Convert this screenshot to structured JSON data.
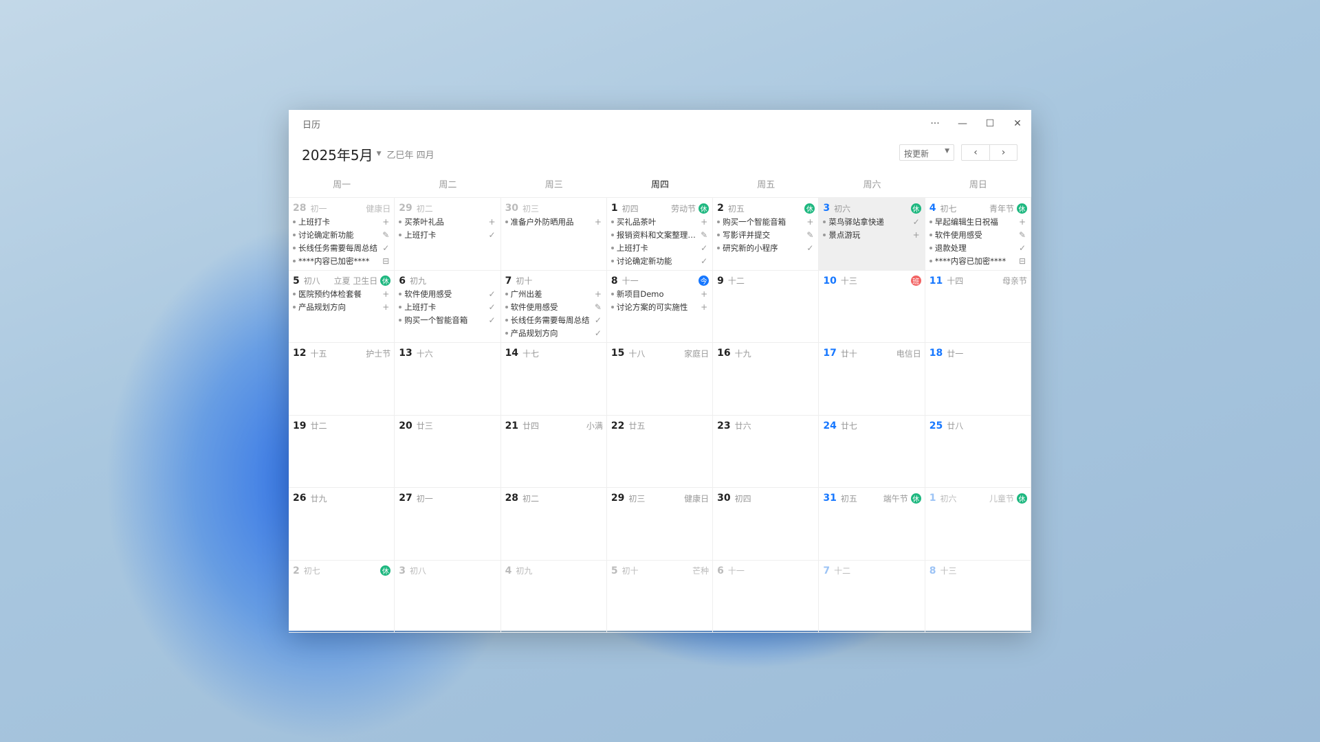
{
  "app": {
    "title": "日历"
  },
  "window_controls": {
    "more": "···",
    "minimize": "—",
    "maximize": "☐",
    "close": "✕"
  },
  "header": {
    "month": "2025年5月",
    "lunar_year": "乙巳年 四月",
    "sort_label": "按更新",
    "prev": "‹",
    "next": "›"
  },
  "weekdays": [
    "周一",
    "周二",
    "周三",
    "周四",
    "周五",
    "周六",
    "周日"
  ],
  "current_weekday": 3,
  "badge_colors": {
    "休": "#1db77f",
    "今": "#1677ff",
    "班": "#f26363"
  },
  "weeks": [
    [
      {
        "day": "28",
        "lunar": "初一",
        "festival": "健康日",
        "other": true,
        "items": [
          {
            "text": "上班打卡",
            "icon": "plus"
          },
          {
            "text": "讨论确定新功能",
            "icon": "edit"
          },
          {
            "text": "长线任务需要每周总结",
            "icon": "check"
          },
          {
            "text": "****内容已加密****",
            "icon": "lock"
          }
        ]
      },
      {
        "day": "29",
        "lunar": "初二",
        "other": true,
        "items": [
          {
            "text": "买茶叶礼品",
            "icon": "plus"
          },
          {
            "text": "上班打卡",
            "icon": "check"
          }
        ]
      },
      {
        "day": "30",
        "lunar": "初三",
        "other": true,
        "items": [
          {
            "text": "准备户外防晒用品",
            "icon": "plus"
          }
        ]
      },
      {
        "day": "1",
        "lunar": "初四",
        "festival": "劳动节",
        "badge": "休",
        "items": [
          {
            "text": "买礼品茶叶",
            "icon": "plus"
          },
          {
            "text": "报销资料和文案整理整理",
            "icon": "edit"
          },
          {
            "text": "上班打卡",
            "icon": "check"
          },
          {
            "text": "讨论确定新功能",
            "icon": "check"
          }
        ]
      },
      {
        "day": "2",
        "lunar": "初五",
        "badge": "休",
        "items": [
          {
            "text": "购买一个智能音箱",
            "icon": "plus"
          },
          {
            "text": "写影评并提交",
            "icon": "edit"
          },
          {
            "text": "研究新的小程序",
            "icon": "check"
          }
        ]
      },
      {
        "day": "3",
        "lunar": "初六",
        "badge": "休",
        "weekend": true,
        "selected": true,
        "items": [
          {
            "text": "菜鸟驿站拿快递",
            "icon": "check"
          },
          {
            "text": "景点游玩",
            "icon": "plus"
          }
        ]
      },
      {
        "day": "4",
        "lunar": "初七",
        "festival": "青年节",
        "badge": "休",
        "weekend": true,
        "items": [
          {
            "text": "早起编辑生日祝福",
            "icon": "plus"
          },
          {
            "text": "软件使用感受",
            "icon": "edit"
          },
          {
            "text": "退款处理",
            "icon": "check"
          },
          {
            "text": "****内容已加密****",
            "icon": "lock"
          }
        ]
      }
    ],
    [
      {
        "day": "5",
        "lunar": "初八",
        "festival": "立夏 卫生日",
        "badge": "休",
        "items": [
          {
            "text": "医院预约体检套餐",
            "icon": "plus"
          },
          {
            "text": "产品规划方向",
            "icon": "plus"
          }
        ]
      },
      {
        "day": "6",
        "lunar": "初九",
        "items": [
          {
            "text": "软件使用感受",
            "icon": "check"
          },
          {
            "text": "上班打卡",
            "icon": "check"
          },
          {
            "text": "购买一个智能音箱",
            "icon": "check"
          }
        ]
      },
      {
        "day": "7",
        "lunar": "初十",
        "items": [
          {
            "text": "广州出差",
            "icon": "plus"
          },
          {
            "text": "软件使用感受",
            "icon": "edit"
          },
          {
            "text": "长线任务需要每周总结",
            "icon": "check"
          },
          {
            "text": "产品规划方向",
            "icon": "check"
          }
        ]
      },
      {
        "day": "8",
        "lunar": "十一",
        "badge": "今",
        "today": true,
        "items": [
          {
            "text": "新项目Demo",
            "icon": "plus"
          },
          {
            "text": "讨论方案的可实施性",
            "icon": "plus"
          }
        ]
      },
      {
        "day": "9",
        "lunar": "十二",
        "items": []
      },
      {
        "day": "10",
        "lunar": "十三",
        "badge": "班",
        "weekend": true,
        "items": []
      },
      {
        "day": "11",
        "lunar": "十四",
        "festival": "母亲节",
        "weekend": true,
        "items": []
      }
    ],
    [
      {
        "day": "12",
        "lunar": "十五",
        "festival": "护士节",
        "items": []
      },
      {
        "day": "13",
        "lunar": "十六",
        "items": []
      },
      {
        "day": "14",
        "lunar": "十七",
        "items": []
      },
      {
        "day": "15",
        "lunar": "十八",
        "festival": "家庭日",
        "items": []
      },
      {
        "day": "16",
        "lunar": "十九",
        "items": []
      },
      {
        "day": "17",
        "lunar": "廿十",
        "festival": "电信日",
        "weekend": true,
        "items": []
      },
      {
        "day": "18",
        "lunar": "廿一",
        "weekend": true,
        "items": []
      }
    ],
    [
      {
        "day": "19",
        "lunar": "廿二",
        "items": []
      },
      {
        "day": "20",
        "lunar": "廿三",
        "items": []
      },
      {
        "day": "21",
        "lunar": "廿四",
        "festival": "小满",
        "items": []
      },
      {
        "day": "22",
        "lunar": "廿五",
        "items": []
      },
      {
        "day": "23",
        "lunar": "廿六",
        "items": []
      },
      {
        "day": "24",
        "lunar": "廿七",
        "weekend": true,
        "items": []
      },
      {
        "day": "25",
        "lunar": "廿八",
        "weekend": true,
        "items": []
      }
    ],
    [
      {
        "day": "26",
        "lunar": "廿九",
        "items": []
      },
      {
        "day": "27",
        "lunar": "初一",
        "items": []
      },
      {
        "day": "28",
        "lunar": "初二",
        "items": []
      },
      {
        "day": "29",
        "lunar": "初三",
        "festival": "健康日",
        "items": []
      },
      {
        "day": "30",
        "lunar": "初四",
        "items": []
      },
      {
        "day": "31",
        "lunar": "初五",
        "festival": "端午节",
        "badge": "休",
        "weekend": true,
        "items": []
      },
      {
        "day": "1",
        "lunar": "初六",
        "festival": "儿童节",
        "badge": "休",
        "weekend": true,
        "other": true,
        "items": []
      }
    ],
    [
      {
        "day": "2",
        "lunar": "初七",
        "badge": "休",
        "other": true,
        "items": []
      },
      {
        "day": "3",
        "lunar": "初八",
        "other": true,
        "items": []
      },
      {
        "day": "4",
        "lunar": "初九",
        "other": true,
        "items": []
      },
      {
        "day": "5",
        "lunar": "初十",
        "festival": "芒种",
        "other": true,
        "items": []
      },
      {
        "day": "6",
        "lunar": "十一",
        "other": true,
        "items": []
      },
      {
        "day": "7",
        "lunar": "十二",
        "weekend": true,
        "other": true,
        "items": []
      },
      {
        "day": "8",
        "lunar": "十三",
        "weekend": true,
        "other": true,
        "items": []
      }
    ]
  ]
}
